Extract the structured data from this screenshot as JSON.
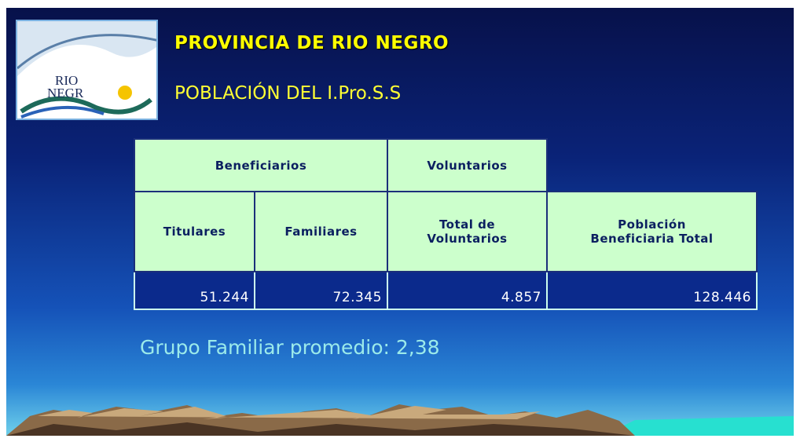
{
  "logo": {
    "line1": "RIO",
    "line2": "NEGR"
  },
  "header": {
    "title": "PROVINCIA DE RIO NEGRO",
    "subtitle": "POBLACIÓN DEL I.Pro.S.S"
  },
  "table": {
    "group_headers": [
      "Beneficiarios",
      "Voluntarios"
    ],
    "columns": [
      "Titulares",
      "Familiares",
      "Total de Voluntarios",
      "Población Beneficiaria Total"
    ],
    "rows": [
      [
        "51.244",
        "72.345",
        "4.857",
        "128.446"
      ]
    ]
  },
  "footer": {
    "note": "Grupo Familiar promedio: 2,38"
  }
}
